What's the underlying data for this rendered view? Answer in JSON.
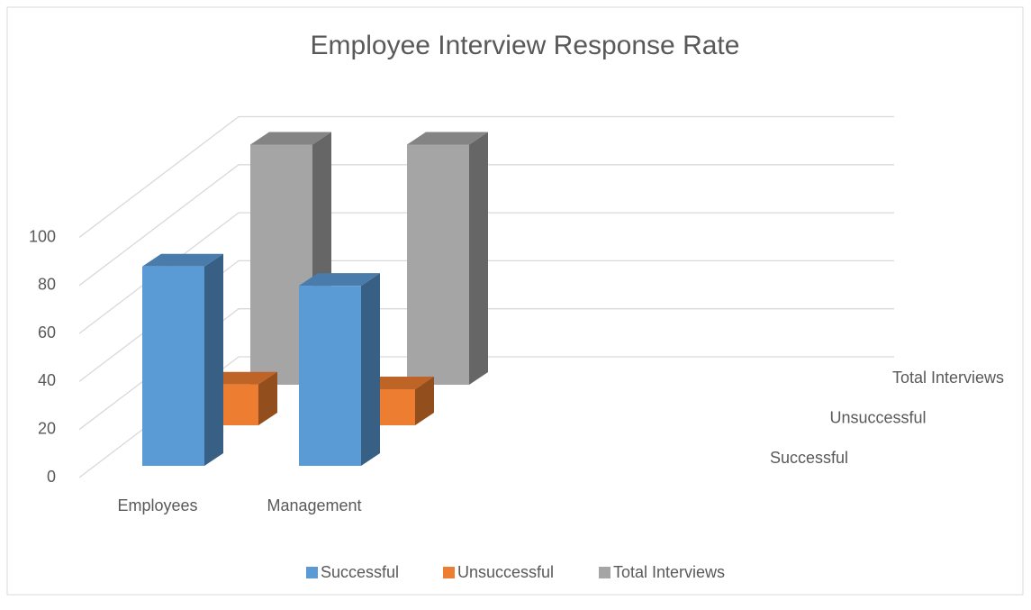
{
  "chart_data": {
    "type": "bar3d",
    "title": "Employee Interview Response Rate",
    "categories": [
      "Employees",
      "Management"
    ],
    "series": [
      {
        "name": "Successful",
        "color": "#5b9bd5",
        "values": [
          83,
          75
        ]
      },
      {
        "name": "Unsuccessful",
        "color": "#ed7d31",
        "values": [
          17,
          15
        ]
      },
      {
        "name": "Total Interviews",
        "color": "#a5a5a5",
        "values": [
          100,
          100
        ]
      }
    ],
    "ylim": [
      0,
      100
    ],
    "yticks": [
      0,
      20,
      40,
      60,
      80,
      100
    ],
    "grid": true,
    "legend": "bottom"
  }
}
